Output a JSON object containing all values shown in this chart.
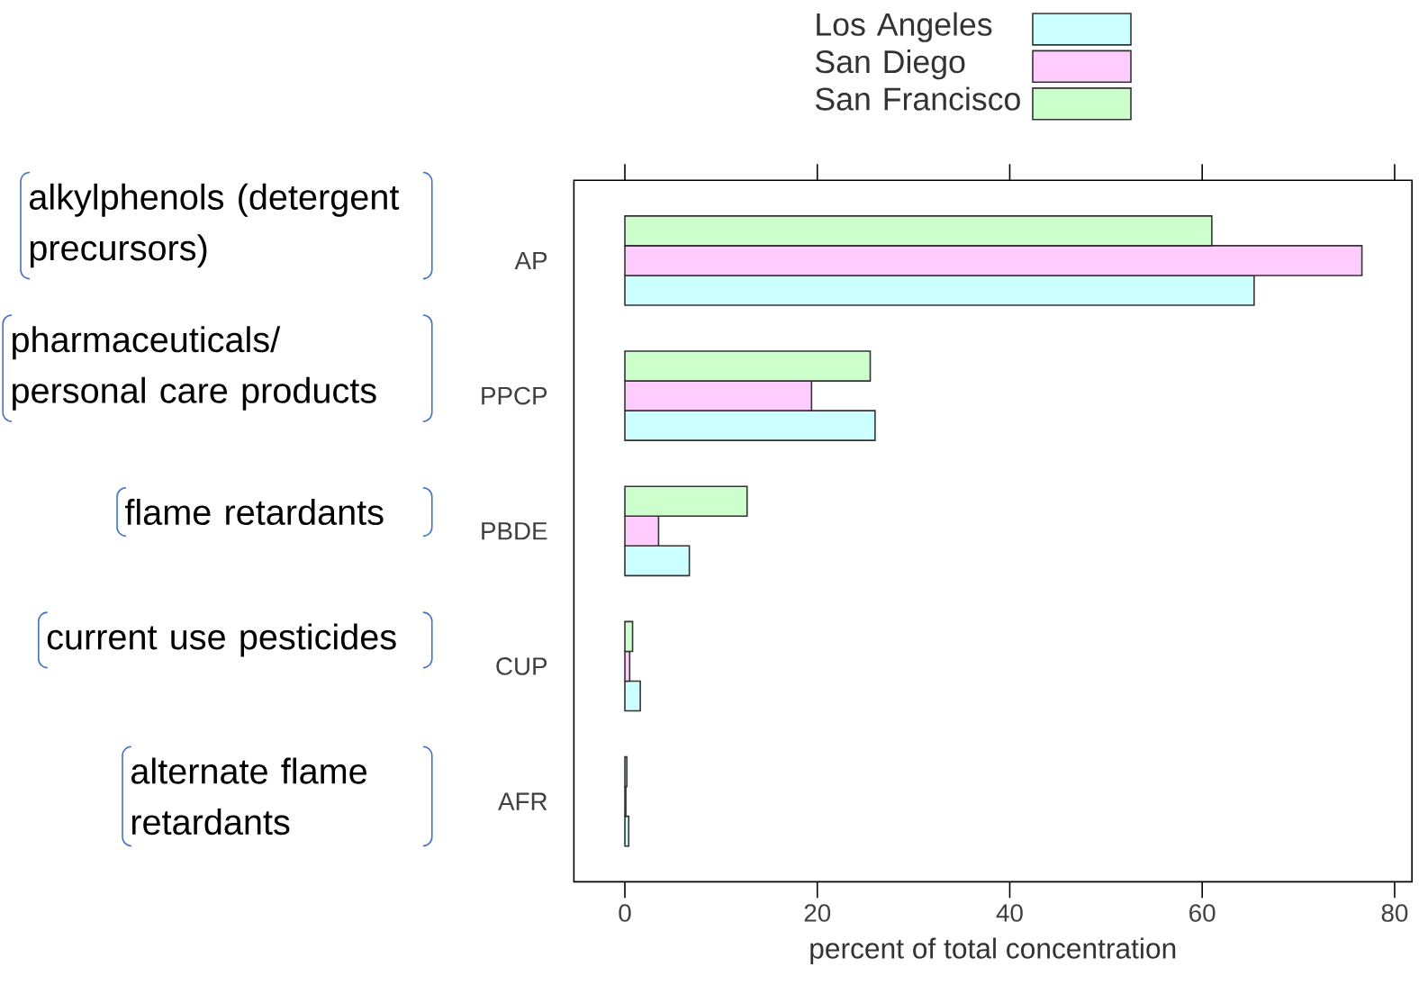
{
  "chart_data": {
    "type": "bar",
    "orientation": "horizontal",
    "categories": [
      "AP",
      "PPCP",
      "PBDE",
      "CUP",
      "AFR"
    ],
    "series": [
      {
        "name": "Los Angeles",
        "color": "#ccffff",
        "values": [
          65.4,
          26.0,
          6.7,
          1.6,
          0.4
        ]
      },
      {
        "name": "San Diego",
        "color": "#ffccff",
        "values": [
          76.6,
          19.4,
          3.5,
          0.5,
          0.1
        ]
      },
      {
        "name": "San Francisco",
        "color": "#ccffcc",
        "values": [
          61.0,
          25.5,
          12.7,
          0.8,
          0.2
        ]
      }
    ],
    "xlim": [
      -5.3,
      81.8
    ],
    "xticks": [
      0,
      20,
      40,
      60,
      80
    ],
    "xlabel": "percent of total concentration",
    "legend": "top",
    "annotations": [
      "alkylphenols (detergent precursors)",
      "pharmaceuticals/ personal care products",
      "flame retardants",
      "current use pesticides",
      "alternate flame retardants"
    ]
  }
}
